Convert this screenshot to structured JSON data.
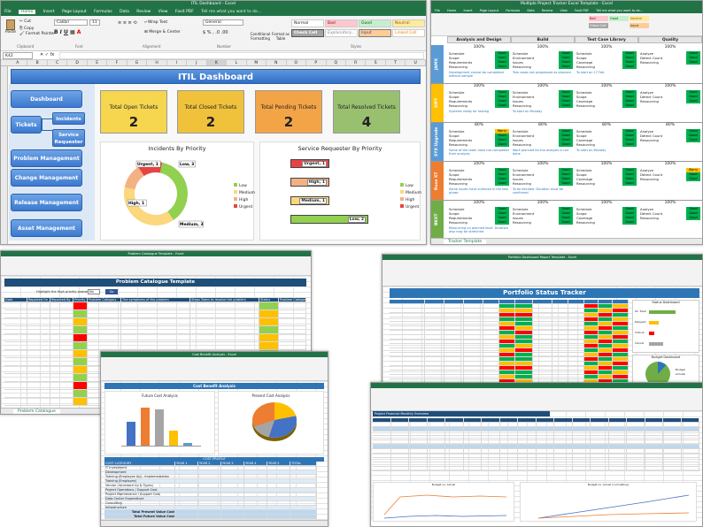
{
  "main_window": {
    "title": "ITIL Dashboard - Excel",
    "tabs": [
      "File",
      "Home",
      "Insert",
      "Page Layout",
      "Formulas",
      "Data",
      "Review",
      "View",
      "Foxit PDF"
    ],
    "tell_me": "Tell me what you want to do...",
    "clipboard": {
      "cut": "Cut",
      "copy": "Copy",
      "format_painter": "Format Painter",
      "paste": "Paste",
      "group": "Clipboard"
    },
    "font": {
      "name": "Calibri",
      "size": "11",
      "group": "Font"
    },
    "alignment": {
      "wrap": "Wrap Text",
      "merge": "Merge & Center",
      "group": "Alignment"
    },
    "number": {
      "format": "General",
      "group": "Number"
    },
    "conditional_formatting": "Conditional Formatting",
    "format_as_table": "Format as Table",
    "styles": {
      "normal": "Normal",
      "bad": "Bad",
      "good": "Good",
      "neutral": "Neutral",
      "check_cell": "Check Cell",
      "explanatory": "Explanatory...",
      "input": "Input",
      "linked_cell": "Linked Cell",
      "group": "Styles"
    },
    "name_box": "K42",
    "columns": [
      "A",
      "B",
      "C",
      "D",
      "E",
      "F",
      "G",
      "H",
      "I",
      "J",
      "K",
      "L",
      "M",
      "N",
      "O",
      "P",
      "Q",
      "R",
      "S",
      "T",
      "U"
    ],
    "dashboard_title": "ITIL Dashboard",
    "nav": {
      "dashboard": "Dashboard",
      "tickets": "Tickets",
      "incidents": "Incidents",
      "service_requester": "Service Requester",
      "problem": "Problem Management",
      "change": "Change Management",
      "release": "Release Management",
      "asset": "Asset Management"
    },
    "cards": [
      {
        "label": "Total Open Tickets",
        "value": "2",
        "color": "#f5d64e"
      },
      {
        "label": "Total Closed Tickets",
        "value": "2",
        "color": "#f0c23c"
      },
      {
        "label": "Total Pending Tickets",
        "value": "2",
        "color": "#f3a447"
      },
      {
        "label": "Total Resolved Tickets",
        "value": "4",
        "color": "#98c06f"
      }
    ],
    "incidents_chart": {
      "title": "Incidents By Priority",
      "type": "pie",
      "slices": [
        {
          "name": "Low",
          "value": 3,
          "color": "#92d050"
        },
        {
          "name": "Medium",
          "value": 3,
          "color": "#fbd77d"
        },
        {
          "name": "High",
          "value": 1,
          "color": "#f4b183"
        },
        {
          "name": "Urgent",
          "value": 1,
          "color": "#e84343"
        }
      ],
      "labels": [
        "Urgent, 1",
        "Low, 3",
        "High, 1",
        "Medium, 3"
      ],
      "legend": [
        "Low",
        "Medium",
        "High",
        "Urgent"
      ]
    },
    "service_chart": {
      "title": "Service Requester By Priority",
      "type": "bar",
      "categories": [
        "Urgent",
        "High",
        "Medium",
        "Low"
      ],
      "values": [
        1,
        1,
        1,
        2
      ],
      "labels": [
        "Urgent, 1",
        "High, 1",
        "Medium, 1",
        "Low, 2"
      ],
      "colors": [
        "#e84343",
        "#f4b183",
        "#fbd77d",
        "#92d050"
      ],
      "legend": [
        "Low",
        "Medium",
        "High",
        "Urgent"
      ]
    }
  },
  "project_window": {
    "title": "Multiple Project Tracker Excel Template - Excel",
    "tabs": [
      "File",
      "Home",
      "Insert",
      "Page Layout",
      "Formulas",
      "Data",
      "Review",
      "View",
      "Foxit PDF"
    ],
    "tell_me": "Tell me what you want to do...",
    "headers": [
      "Analysis and Design",
      "Build",
      "Test Case Library",
      "Quality"
    ],
    "percents": [
      "100%",
      "95%",
      "85%",
      "0%"
    ],
    "sheet_tab": "Tracker Template",
    "projects": [
      {
        "name": "JAMX",
        "color": "#5b9bd5",
        "p": [
          "100%",
          "100%",
          "100%",
          "100%"
        ],
        "tasks_a": [
          "Schedule",
          "Scope",
          "Requirements",
          "Resourcing"
        ],
        "tasks_b": [
          "Schedule",
          "Environment",
          "Issues",
          "Resourcing"
        ],
        "tasks_c": [
          "Schedule",
          "Scope",
          "Coverage",
          "Resourcing"
        ],
        "tasks_d": [
          "Analyze",
          "Detect Count",
          "Resourcing"
        ],
        "status": [
          "Good",
          "Good",
          "Good",
          "Good"
        ],
        "notes": [
          "Development cannot be completed without sample",
          "Test cases not progressed as planned",
          "To start on 17 Feb"
        ]
      },
      {
        "name": "SIPT",
        "color": "#ffc000",
        "p": [
          "100%",
          "100%",
          "100%",
          "100%"
        ],
        "tasks_a": [
          "Schedule",
          "Scope",
          "Requirements",
          "Resourcing"
        ],
        "tasks_b": [
          "Schedule",
          "Environment",
          "Issues",
          "Resourcing"
        ],
        "tasks_c": [
          "Schedule",
          "Scope",
          "Coverage",
          "Resourcing"
        ],
        "tasks_d": [
          "Analyze",
          "Detect Count",
          "Resourcing"
        ],
        "status": [
          "Good",
          "Good",
          "Good",
          "Good"
        ],
        "notes": [
          "Systems ready for testing",
          "To start on Monday"
        ]
      },
      {
        "name": "SYX Upgrade",
        "color": "#5b9bd5",
        "p": [
          "80%",
          "80%",
          "80%",
          "80%"
        ],
        "tasks_a": [
          "Schedule",
          "Scope",
          "Requirements",
          "Resourcing"
        ],
        "tasks_b": [
          "Schedule",
          "Environment",
          "Issues",
          "Resourcing"
        ],
        "tasks_c": [
          "Schedule",
          "Scope",
          "Coverage",
          "Resourcing"
        ],
        "tasks_d": [
          "Analyze",
          "Detect Count",
          "Resourcing"
        ],
        "status": [
          "Worry",
          "Good",
          "Good",
          "Good"
        ],
        "notes": [
          "Some of the team have not completed their analysis",
          "Work planned for the analysis is not done",
          "To start on Monday"
        ]
      },
      {
        "name": "Rose XT",
        "color": "#ed7d31",
        "p": [
          "100%",
          "100%",
          "100%",
          "100%"
        ],
        "tasks_a": [
          "Schedule",
          "Scope",
          "Requirements",
          "Resourcing"
        ],
        "tasks_b": [
          "Schedule",
          "Environment",
          "Issues",
          "Resourcing"
        ],
        "tasks_c": [
          "Schedule",
          "Scope",
          "Coverage",
          "Resourcing"
        ],
        "tasks_d": [
          "Analyze",
          "Detect Count",
          "Resourcing"
        ],
        "status": [
          "Good",
          "Good",
          "Good",
          "Worry"
        ],
        "notes": [
          "Some issues have surfaced in the test phase",
          "To be decided. Duration must be confirmed"
        ]
      },
      {
        "name": "BKXT",
        "color": "#70ad47",
        "p": [
          "100%",
          "100%",
          "100%",
          "100%"
        ],
        "tasks_a": [
          "Schedule",
          "Scope",
          "Requirements",
          "Resourcing"
        ],
        "tasks_b": [
          "Schedule",
          "Environment",
          "Issues",
          "Resourcing"
        ],
        "tasks_c": [
          "Schedule",
          "Scope",
          "Coverage",
          "Resourcing"
        ],
        "tasks_d": [
          "Analyze",
          "Detect Count",
          "Resourcing"
        ],
        "status": [
          "Good",
          "Good",
          "Good",
          "Good"
        ],
        "notes": [
          "Resourcing on planned level. Duration also may be stretched"
        ]
      }
    ]
  },
  "problem_window": {
    "title": "Problem Catalogue Template - Excel",
    "heading": "Problem Catalogue Template",
    "highlight_label": "Highlight the High priority problem",
    "highlight_value": "No",
    "go": "Go",
    "headers": [
      "Date",
      "Reported On",
      "Reported By",
      "Priority",
      "Problem Category",
      "The symptoms of the problem",
      "Steps Taken to resolve the problem",
      "Status",
      "Problem Category"
    ],
    "sheet_tab": "Problem Catalogue"
  },
  "portfolio_window": {
    "title": "Portfolio Dashboard Report Template - Excel",
    "heading": "Portfolio Status Tracker",
    "dashboard_status": "Status Dashboard",
    "budget_dashboard": "Budget Dashboard",
    "status_legend": [
      "On Track",
      "Delayed",
      "Critical",
      "Cancel"
    ],
    "budget_legend": [
      "Budget",
      "Actuals"
    ]
  },
  "cost_window": {
    "title": "Cost Benefit Analysis - Excel",
    "heading": "Cost Benefit Analysis",
    "future_chart": "Future Cost Analysis",
    "present_chart": "Present Cost Analysis",
    "table_title": "COST PROFILE",
    "headers": [
      "COST CATEGORY",
      "YEAR 1",
      "YEAR 2",
      "YEAR 3",
      "YEAR 4",
      "YEAR 5",
      "TOTAL"
    ],
    "rows": [
      "IT Investment",
      "Development",
      "Training (Employee Up) - Implementation",
      "Training (Employee)",
      "Vendor (Increased Up & Types)",
      "Project Operations / Support Cost",
      "Project Maintenance / Support Cost",
      "Data Center Expenditure",
      "Consulting",
      "Infrastructure"
    ],
    "total_present": "Total Present Value Cost",
    "total_future": "Total Future Value Cost",
    "bar_colors": [
      "#4472c4",
      "#ed7d31",
      "#a5a5a5",
      "#ffc000",
      "#5b9bd5"
    ],
    "pie_colors": [
      "#4472c4",
      "#ed7d31",
      "#a5a5a5",
      "#ffc000"
    ]
  },
  "monthly_window": {
    "title": "Project Financial Monthly Overview",
    "chart1": "Budget vs. Actual",
    "chart2": "Budget vs. Actual (cumulative)"
  }
}
